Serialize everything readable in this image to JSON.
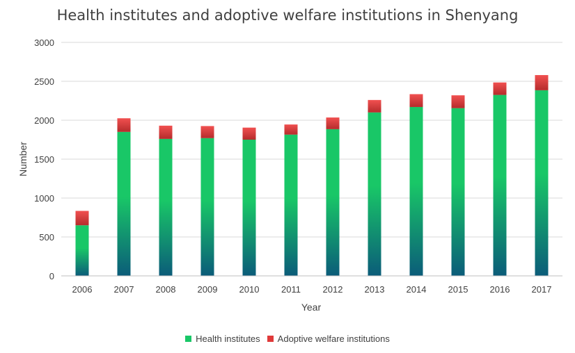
{
  "chart_data": {
    "type": "bar",
    "stacked": true,
    "title": "Health institutes and adoptive welfare institutions in Shenyang",
    "xlabel": "Year",
    "ylabel": "Number",
    "ylim": [
      0,
      3000
    ],
    "yticks": [
      0,
      500,
      1000,
      1500,
      2000,
      2500,
      3000
    ],
    "grid": true,
    "legend_position": "bottom",
    "categories": [
      "2006",
      "2007",
      "2008",
      "2009",
      "2010",
      "2011",
      "2012",
      "2013",
      "2014",
      "2015",
      "2016",
      "2017"
    ],
    "series": [
      {
        "name": "Health institutes",
        "color": "#19c767",
        "color_bottom": "#0b5c79",
        "values": [
          650,
          1850,
          1760,
          1770,
          1750,
          1815,
          1885,
          2100,
          2170,
          2155,
          2325,
          2385
        ]
      },
      {
        "name": "Adoptive welfare institutions",
        "color": "#e03a3a",
        "values": [
          185,
          175,
          170,
          155,
          155,
          130,
          150,
          160,
          165,
          165,
          160,
          195
        ]
      }
    ]
  }
}
